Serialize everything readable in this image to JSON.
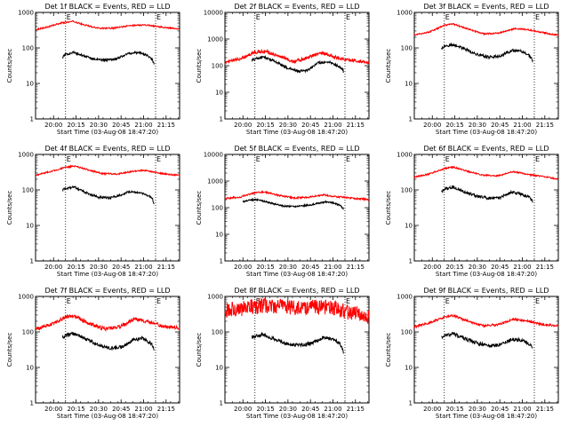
{
  "chart_data": [
    {
      "type": "line",
      "title": "Det 1f BLACK = Events, RED = LLD",
      "xlabel": "Start Time (03-Aug-08 18:47:20)",
      "ylabel": "Counts/sec",
      "yscale": "log",
      "ylim": [
        1,
        1000
      ],
      "xlim": [
        "19:48",
        "21:24"
      ],
      "x_tick_labels": [
        "20:00",
        "20:15",
        "20:30",
        "20:45",
        "21:00",
        "21:15"
      ],
      "y_tick_labels": [
        "1",
        "10",
        "100",
        "1000"
      ],
      "markers": [
        {
          "label": "E",
          "x": "20:08"
        },
        {
          "label": "E",
          "x": "21:08"
        }
      ],
      "series": [
        {
          "color": "#ff0000",
          "x": [
            "19:48",
            "19:55",
            "20:05",
            "20:13",
            "20:20",
            "20:30",
            "20:40",
            "20:50",
            "21:00",
            "21:10",
            "21:18",
            "21:24"
          ],
          "values": [
            330,
            380,
            500,
            560,
            450,
            360,
            360,
            420,
            450,
            400,
            360,
            350
          ],
          "noise": 0.02
        },
        {
          "color": "#000000",
          "x": [
            "20:06",
            "20:08",
            "20:13",
            "20:20",
            "20:28",
            "20:36",
            "20:42",
            "20:50",
            "20:57",
            "21:03",
            "21:06",
            "21:07"
          ],
          "values": [
            55,
            65,
            75,
            60,
            47,
            46,
            50,
            70,
            75,
            60,
            45,
            35
          ],
          "noise": 0.03
        }
      ]
    },
    {
      "type": "line",
      "title": "Det 2f BLACK = Events, RED = LLD",
      "xlabel": "Start Time (03-Aug-08 18:47:20)",
      "ylabel": "Counts/sec",
      "yscale": "log",
      "ylim": [
        1,
        10000
      ],
      "xlim": [
        "19:48",
        "21:24"
      ],
      "x_tick_labels": [
        "20:00",
        "20:15",
        "20:30",
        "20:45",
        "21:00",
        "21:15"
      ],
      "y_tick_labels": [
        "1",
        "10",
        "100",
        "1000",
        "10000"
      ],
      "markers": [
        {
          "label": "E",
          "x": "20:08"
        },
        {
          "label": "E",
          "x": "21:08"
        }
      ],
      "series": [
        {
          "color": "#ff0000",
          "x": [
            "19:48",
            "19:58",
            "20:08",
            "20:15",
            "20:24",
            "20:34",
            "20:43",
            "20:52",
            "21:00",
            "21:10",
            "21:18",
            "21:24"
          ],
          "values": [
            130,
            180,
            320,
            350,
            230,
            140,
            200,
            320,
            220,
            160,
            150,
            130
          ],
          "noise": 0.06
        },
        {
          "color": "#000000",
          "x": [
            "20:06",
            "20:08",
            "20:14",
            "20:21",
            "20:30",
            "20:38",
            "20:44",
            "20:50",
            "20:57",
            "21:03",
            "21:06",
            "21:07"
          ],
          "values": [
            160,
            180,
            210,
            150,
            80,
            60,
            70,
            130,
            140,
            100,
            80,
            60
          ],
          "noise": 0.05
        }
      ]
    },
    {
      "type": "line",
      "title": "Det 3f BLACK = Events, RED = LLD",
      "xlabel": "Start Time (03-Aug-08 18:47:20)",
      "ylabel": "Counts/sec",
      "yscale": "log",
      "ylim": [
        1,
        1000
      ],
      "xlim": [
        "19:48",
        "21:24"
      ],
      "x_tick_labels": [
        "20:00",
        "20:15",
        "20:30",
        "20:45",
        "21:00",
        "21:15"
      ],
      "y_tick_labels": [
        "1",
        "10",
        "100",
        "1000"
      ],
      "markers": [
        {
          "label": "E",
          "x": "20:08"
        },
        {
          "label": "E",
          "x": "21:08"
        }
      ],
      "series": [
        {
          "color": "#ff0000",
          "x": [
            "19:48",
            "19:58",
            "20:08",
            "20:14",
            "20:24",
            "20:34",
            "20:44",
            "20:55",
            "21:03",
            "21:12",
            "21:20",
            "21:24"
          ],
          "values": [
            230,
            280,
            430,
            470,
            340,
            250,
            260,
            350,
            330,
            280,
            240,
            230
          ],
          "noise": 0.02
        },
        {
          "color": "#000000",
          "x": [
            "20:06",
            "20:08",
            "20:14",
            "20:21",
            "20:30",
            "20:38",
            "20:46",
            "20:53",
            "20:59",
            "21:04",
            "21:06",
            "21:07"
          ],
          "values": [
            95,
            110,
            125,
            95,
            65,
            55,
            60,
            85,
            80,
            65,
            55,
            42
          ],
          "noise": 0.04
        }
      ]
    },
    {
      "type": "line",
      "title": "Det 4f BLACK = Events, RED = LLD",
      "xlabel": "Start Time (03-Aug-08 18:47:20)",
      "ylabel": "Counts/sec",
      "yscale": "log",
      "ylim": [
        1,
        1000
      ],
      "xlim": [
        "19:48",
        "21:24"
      ],
      "x_tick_labels": [
        "20:00",
        "20:15",
        "20:30",
        "20:45",
        "21:00",
        "21:15"
      ],
      "y_tick_labels": [
        "1",
        "10",
        "100",
        "1000"
      ],
      "markers": [
        {
          "label": "E",
          "x": "20:08"
        },
        {
          "label": "E",
          "x": "21:08"
        }
      ],
      "series": [
        {
          "color": "#ff0000",
          "x": [
            "19:48",
            "19:58",
            "20:08",
            "20:14",
            "20:22",
            "20:32",
            "20:42",
            "20:52",
            "21:00",
            "21:10",
            "21:18",
            "21:24"
          ],
          "values": [
            260,
            330,
            430,
            470,
            380,
            290,
            280,
            330,
            360,
            300,
            270,
            260
          ],
          "noise": 0.02
        },
        {
          "color": "#000000",
          "x": [
            "20:06",
            "20:08",
            "20:14",
            "20:21",
            "20:30",
            "20:38",
            "20:44",
            "20:50",
            "20:57",
            "21:03",
            "21:06",
            "21:07"
          ],
          "values": [
            100,
            110,
            120,
            85,
            62,
            60,
            70,
            90,
            85,
            70,
            55,
            40
          ],
          "noise": 0.03
        }
      ]
    },
    {
      "type": "line",
      "title": "Det 5f BLACK = Events, RED = LLD",
      "xlabel": "Start Time (03-Aug-08 18:47:20)",
      "ylabel": "Counts/sec",
      "yscale": "log",
      "ylim": [
        1,
        10000
      ],
      "xlim": [
        "19:48",
        "21:24"
      ],
      "x_tick_labels": [
        "20:00",
        "20:15",
        "20:30",
        "20:45",
        "21:00",
        "21:15"
      ],
      "y_tick_labels": [
        "1",
        "10",
        "100",
        "1000",
        "10000"
      ],
      "markers": [
        {
          "label": "E",
          "x": "20:08"
        },
        {
          "label": "E",
          "x": "21:08"
        }
      ],
      "series": [
        {
          "color": "#ff0000",
          "x": [
            "19:48",
            "19:58",
            "20:08",
            "20:14",
            "20:24",
            "20:34",
            "20:44",
            "20:54",
            "21:02",
            "21:12",
            "21:20",
            "21:24"
          ],
          "values": [
            220,
            250,
            360,
            390,
            290,
            230,
            250,
            300,
            260,
            230,
            210,
            200
          ],
          "noise": 0.03
        },
        {
          "color": "#000000",
          "x": [
            "20:00",
            "20:04",
            "20:10",
            "20:18",
            "20:27",
            "20:36",
            "20:46",
            "20:55",
            "21:01",
            "21:05",
            "21:07"
          ],
          "values": [
            170,
            190,
            200,
            150,
            115,
            110,
            130,
            165,
            150,
            120,
            90
          ],
          "noise": 0.03
        }
      ]
    },
    {
      "type": "line",
      "title": "Det 6f BLACK = Events, RED = LLD",
      "xlabel": "Start Time (03-Aug-08 18:47:20)",
      "ylabel": "Counts/sec",
      "yscale": "log",
      "ylim": [
        1,
        1000
      ],
      "xlim": [
        "19:48",
        "21:24"
      ],
      "x_tick_labels": [
        "20:00",
        "20:15",
        "20:30",
        "20:45",
        "21:00",
        "21:15"
      ],
      "y_tick_labels": [
        "1",
        "10",
        "100",
        "1000"
      ],
      "markers": [
        {
          "label": "E",
          "x": "20:08"
        },
        {
          "label": "E",
          "x": "21:08"
        }
      ],
      "series": [
        {
          "color": "#ff0000",
          "x": [
            "19:48",
            "19:58",
            "20:08",
            "20:14",
            "20:24",
            "20:34",
            "20:44",
            "20:54",
            "21:04",
            "21:14",
            "21:24"
          ],
          "values": [
            230,
            280,
            400,
            440,
            330,
            260,
            250,
            330,
            270,
            240,
            200
          ],
          "noise": 0.02
        },
        {
          "color": "#000000",
          "x": [
            "20:06",
            "20:08",
            "20:14",
            "20:21",
            "20:30",
            "20:38",
            "20:46",
            "20:53",
            "21:00",
            "21:05",
            "21:07"
          ],
          "values": [
            90,
            105,
            120,
            90,
            65,
            58,
            62,
            88,
            75,
            62,
            45
          ],
          "noise": 0.04
        }
      ]
    },
    {
      "type": "line",
      "title": "Det 7f BLACK = Events, RED = LLD",
      "xlabel": "Start Time (03-Aug-08 18:47:20)",
      "ylabel": "Counts/sec",
      "yscale": "log",
      "ylim": [
        1,
        1000
      ],
      "xlim": [
        "19:48",
        "21:24"
      ],
      "x_tick_labels": [
        "20:00",
        "20:15",
        "20:30",
        "20:45",
        "21:00",
        "21:15"
      ],
      "y_tick_labels": [
        "1",
        "10",
        "100",
        "1000"
      ],
      "markers": [
        {
          "label": "E",
          "x": "20:08"
        },
        {
          "label": "E",
          "x": "21:08"
        }
      ],
      "series": [
        {
          "color": "#ff0000",
          "x": [
            "19:48",
            "19:58",
            "20:08",
            "20:14",
            "20:24",
            "20:34",
            "20:44",
            "20:54",
            "21:04",
            "21:14",
            "21:24"
          ],
          "values": [
            120,
            160,
            260,
            280,
            170,
            120,
            140,
            230,
            190,
            140,
            130
          ],
          "noise": 0.05
        },
        {
          "color": "#000000",
          "x": [
            "20:06",
            "20:08",
            "20:14",
            "20:21",
            "20:30",
            "20:38",
            "20:46",
            "20:53",
            "20:59",
            "21:04",
            "21:06",
            "21:07"
          ],
          "values": [
            72,
            80,
            90,
            65,
            42,
            35,
            38,
            60,
            65,
            50,
            42,
            30
          ],
          "noise": 0.05
        }
      ]
    },
    {
      "type": "line",
      "title": "Det 8f BLACK = Events, RED = LLD",
      "xlabel": "Start Time (03-Aug-08 18:47:20)",
      "ylabel": "Counts/sec",
      "yscale": "log",
      "ylim": [
        1,
        1000
      ],
      "xlim": [
        "19:48",
        "21:24"
      ],
      "x_tick_labels": [
        "20:00",
        "20:15",
        "20:30",
        "20:45",
        "21:00",
        "21:15"
      ],
      "y_tick_labels": [
        "1",
        "10",
        "100",
        "1000"
      ],
      "markers": [
        {
          "label": "E",
          "x": "20:08"
        },
        {
          "label": "E",
          "x": "21:08"
        }
      ],
      "series": [
        {
          "color": "#ff0000",
          "x": [
            "19:48",
            "19:58",
            "20:08",
            "20:18",
            "20:28",
            "20:38",
            "20:48",
            "20:58",
            "21:08",
            "21:18",
            "21:24"
          ],
          "values": [
            400,
            450,
            520,
            560,
            500,
            470,
            520,
            480,
            380,
            300,
            280
          ],
          "noise": 0.22
        },
        {
          "color": "#000000",
          "x": [
            "20:06",
            "20:08",
            "20:14",
            "20:21",
            "20:30",
            "20:38",
            "20:46",
            "20:53",
            "20:59",
            "21:04",
            "21:06",
            "21:07"
          ],
          "values": [
            68,
            78,
            85,
            62,
            45,
            42,
            48,
            68,
            65,
            50,
            38,
            26
          ],
          "noise": 0.05
        }
      ]
    },
    {
      "type": "line",
      "title": "Det 9f BLACK = Events, RED = LLD",
      "xlabel": "Start Time (03-Aug-08 18:47:20)",
      "ylabel": "Counts/sec",
      "yscale": "log",
      "ylim": [
        1,
        1000
      ],
      "xlim": [
        "19:48",
        "21:24"
      ],
      "x_tick_labels": [
        "20:00",
        "20:15",
        "20:30",
        "20:45",
        "21:00",
        "21:15"
      ],
      "y_tick_labels": [
        "1",
        "10",
        "100",
        "1000"
      ],
      "markers": [
        {
          "label": "E",
          "x": "20:08"
        },
        {
          "label": "E",
          "x": "21:08"
        }
      ],
      "series": [
        {
          "color": "#ff0000",
          "x": [
            "19:48",
            "19:58",
            "20:08",
            "20:14",
            "20:24",
            "20:34",
            "20:44",
            "20:54",
            "21:04",
            "21:14",
            "21:24"
          ],
          "values": [
            140,
            180,
            260,
            290,
            200,
            150,
            160,
            230,
            200,
            160,
            150
          ],
          "noise": 0.03
        },
        {
          "color": "#000000",
          "x": [
            "20:06",
            "20:08",
            "20:14",
            "20:21",
            "20:30",
            "20:38",
            "20:46",
            "20:53",
            "21:00",
            "21:05",
            "21:07"
          ],
          "values": [
            70,
            80,
            88,
            66,
            48,
            40,
            44,
            62,
            58,
            46,
            32
          ],
          "noise": 0.05
        }
      ]
    }
  ]
}
